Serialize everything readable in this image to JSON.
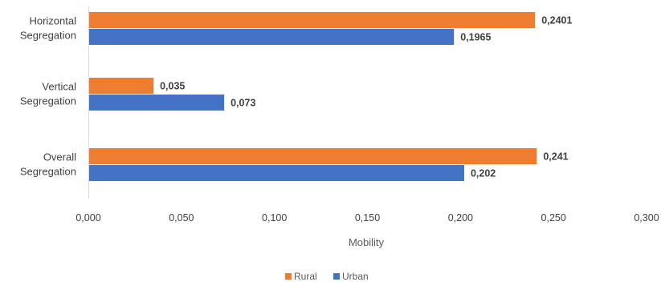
{
  "chart_data": {
    "type": "bar",
    "orientation": "horizontal",
    "categories": [
      [
        "Horizontal",
        "Segregation"
      ],
      [
        "Vertical",
        "Segregation"
      ],
      [
        "Overall",
        "Segregation"
      ]
    ],
    "series": [
      {
        "name": "Rural",
        "color": "#ED7D31",
        "values": [
          0.2401,
          0.035,
          0.241
        ],
        "labels": [
          "0,2401",
          "0,035",
          "0,241"
        ]
      },
      {
        "name": "Urban",
        "color": "#4472C4",
        "values": [
          0.1965,
          0.073,
          0.202
        ],
        "labels": [
          "0,1965",
          "0,073",
          "0,202"
        ]
      }
    ],
    "xlim": [
      0,
      0.3
    ],
    "xticks": [
      0,
      0.05,
      0.1,
      0.15,
      0.2,
      0.25,
      0.3
    ],
    "xtick_labels": [
      "0,000",
      "0,050",
      "0,100",
      "0,150",
      "0,200",
      "0,250",
      "0,300"
    ],
    "xlabel": "Mobility",
    "grid": false,
    "legend_position": "bottom"
  }
}
